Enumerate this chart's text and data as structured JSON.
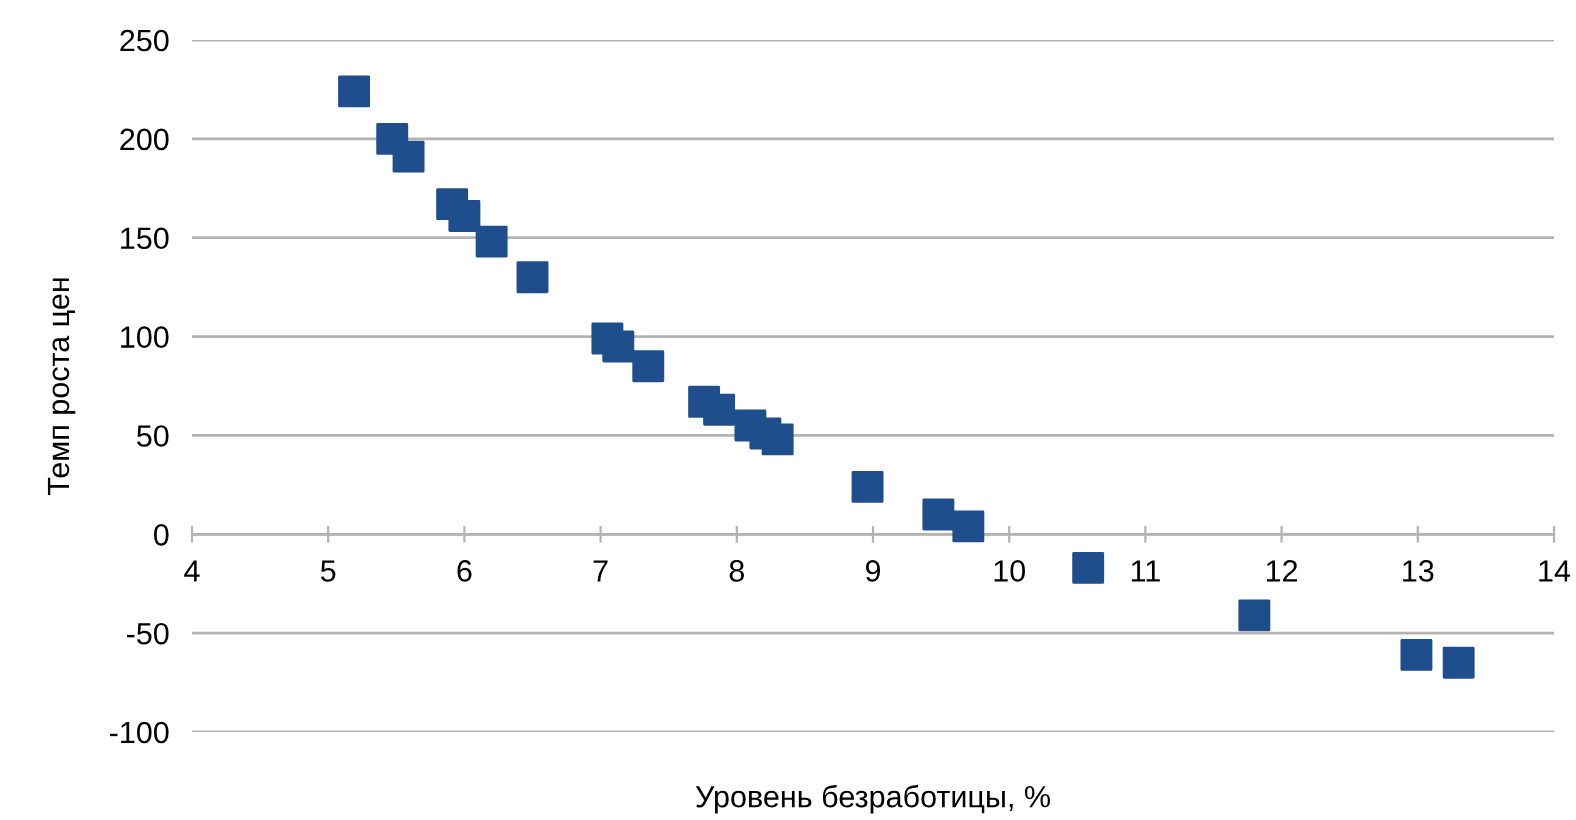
{
  "chart_data": {
    "type": "scatter",
    "xlabel": "Уровень безработицы, %",
    "ylabel": "Темп роста цен",
    "x": [
      5.19,
      5.47,
      5.59,
      5.91,
      6.0,
      6.2,
      6.5,
      7.05,
      7.13,
      7.35,
      7.76,
      7.87,
      8.1,
      8.21,
      8.3,
      8.96,
      9.48,
      9.7,
      10.58,
      11.8,
      12.99,
      13.3
    ],
    "series": [
      {
        "color": "#1f4e8c",
        "values": [
          224,
          200,
          191,
          167,
          161,
          148,
          130,
          99,
          95,
          85,
          67,
          63,
          55,
          51,
          48,
          24,
          10,
          4,
          -17,
          -41,
          -61,
          -65
        ]
      }
    ],
    "xlim": [
      4,
      14
    ],
    "xticks": [
      4,
      5,
      6,
      7,
      8,
      9,
      10,
      11,
      12,
      13,
      14
    ],
    "ylim": [
      -100,
      250
    ],
    "yticks": [
      -100,
      -50,
      0,
      50,
      100,
      150,
      200,
      250
    ],
    "grid": "y",
    "marker": "square",
    "legend": false
  }
}
